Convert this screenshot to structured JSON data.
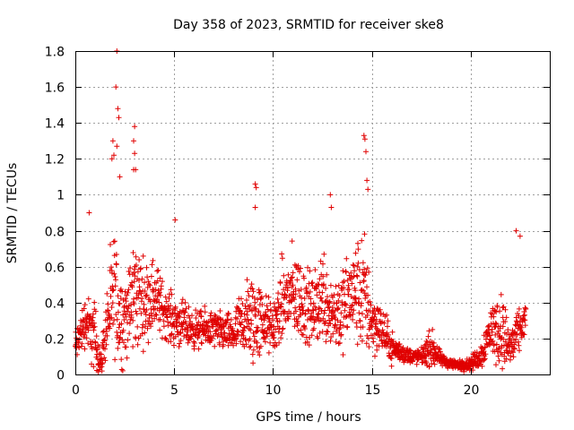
{
  "chart_data": {
    "type": "scatter",
    "title": "Day 358 of 2023, SRMTID for receiver ske8",
    "xlabel": "GPS time / hours",
    "ylabel": "SRMTID / TECUs",
    "xlim": [
      0,
      24
    ],
    "ylim": [
      0,
      1.8
    ],
    "xticks": [
      "0",
      "5",
      "10",
      "15",
      "20"
    ],
    "yticks": [
      "0",
      "0.2",
      "0.4",
      "0.6",
      "0.8",
      "1",
      "1.2",
      "1.4",
      "1.6",
      "1.8"
    ],
    "grid": true,
    "marker": "+",
    "color": "#e00000",
    "series": [
      {
        "name": "ske8",
        "profile_hours": [
          0,
          0.5,
          1.0,
          1.3,
          1.6,
          2.0,
          2.3,
          2.7,
          3.0,
          3.5,
          4.0,
          4.5,
          5.0,
          6.0,
          7.0,
          8.0,
          8.5,
          9.0,
          9.5,
          10.0,
          10.5,
          11.0,
          11.5,
          12.0,
          12.5,
          13.0,
          13.5,
          14.0,
          14.5,
          14.8,
          15.0,
          15.5,
          16.0,
          16.5,
          17.0,
          17.5,
          18.0,
          18.5,
          19.0,
          19.5,
          20.0,
          20.5,
          21.0,
          21.5,
          22.0,
          22.5,
          22.8
        ],
        "profile_median": [
          0.15,
          0.3,
          0.2,
          0.06,
          0.3,
          0.45,
          0.3,
          0.35,
          0.45,
          0.4,
          0.45,
          0.35,
          0.3,
          0.25,
          0.25,
          0.22,
          0.3,
          0.3,
          0.3,
          0.25,
          0.4,
          0.45,
          0.4,
          0.35,
          0.45,
          0.35,
          0.35,
          0.45,
          0.45,
          0.4,
          0.3,
          0.25,
          0.15,
          0.12,
          0.1,
          0.1,
          0.15,
          0.08,
          0.06,
          0.05,
          0.06,
          0.1,
          0.25,
          0.25,
          0.15,
          0.25,
          0.3
        ],
        "profile_spread": [
          0.15,
          0.2,
          0.3,
          0.08,
          0.3,
          0.5,
          0.4,
          0.35,
          0.5,
          0.3,
          0.3,
          0.2,
          0.2,
          0.15,
          0.15,
          0.15,
          0.3,
          0.4,
          0.25,
          0.2,
          0.35,
          0.35,
          0.35,
          0.25,
          0.4,
          0.3,
          0.35,
          0.35,
          0.5,
          0.45,
          0.25,
          0.2,
          0.12,
          0.08,
          0.06,
          0.06,
          0.15,
          0.05,
          0.04,
          0.04,
          0.05,
          0.1,
          0.2,
          0.3,
          0.2,
          0.15,
          0.15
        ],
        "notable_points": [
          {
            "x": 2.1,
            "y": 1.8
          },
          {
            "x": 2.05,
            "y": 1.6
          },
          {
            "x": 2.15,
            "y": 1.48
          },
          {
            "x": 2.2,
            "y": 1.43
          },
          {
            "x": 3.0,
            "y": 1.38
          },
          {
            "x": 2.95,
            "y": 1.3
          },
          {
            "x": 1.9,
            "y": 1.3
          },
          {
            "x": 2.1,
            "y": 1.27
          },
          {
            "x": 1.95,
            "y": 1.22
          },
          {
            "x": 3.0,
            "y": 1.23
          },
          {
            "x": 2.95,
            "y": 1.14
          },
          {
            "x": 3.05,
            "y": 1.14
          },
          {
            "x": 1.85,
            "y": 1.2
          },
          {
            "x": 2.25,
            "y": 1.1
          },
          {
            "x": 14.6,
            "y": 1.33
          },
          {
            "x": 14.65,
            "y": 1.31
          },
          {
            "x": 14.7,
            "y": 1.24
          },
          {
            "x": 14.75,
            "y": 1.08
          },
          {
            "x": 14.8,
            "y": 1.03
          },
          {
            "x": 9.1,
            "y": 1.06
          },
          {
            "x": 9.15,
            "y": 1.04
          },
          {
            "x": 9.1,
            "y": 0.93
          },
          {
            "x": 12.9,
            "y": 1.0
          },
          {
            "x": 12.95,
            "y": 0.93
          },
          {
            "x": 0.7,
            "y": 0.9
          },
          {
            "x": 5.05,
            "y": 0.86
          },
          {
            "x": 22.3,
            "y": 0.8
          },
          {
            "x": 22.5,
            "y": 0.77
          }
        ]
      }
    ]
  }
}
